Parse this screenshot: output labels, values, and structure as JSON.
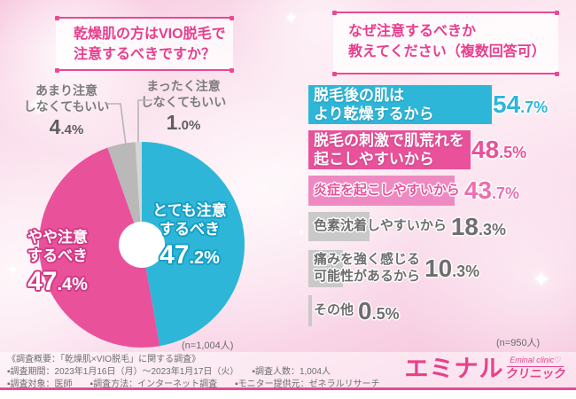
{
  "accent_color": "#e84a94",
  "chart_data": [
    {
      "type": "pie",
      "subtype": "donut",
      "title": "乾燥肌の方はVIO脱毛で\n注意するべきですか？",
      "n_label": "(n=1,004人)",
      "start_angle": "12-oclock",
      "direction": "clockwise",
      "slices": [
        {
          "label": "とても注意\nするべき",
          "value": 47.2,
          "color": "#2eb6d9",
          "label_placement": "inside"
        },
        {
          "label": "やや注意\nするべき",
          "value": 47.4,
          "color": "#e9519b",
          "label_placement": "inside"
        },
        {
          "label": "あまり注意\nしなくてもいい",
          "value": 4.4,
          "color": "#b9b9b9",
          "label_placement": "outside"
        },
        {
          "label": "まったく注意\nしなくてもいい",
          "value": 1.0,
          "color": "#d6d6d6",
          "label_placement": "outside"
        }
      ]
    },
    {
      "type": "bar",
      "orientation": "horizontal",
      "title": "なぜ注意するべきか\n教えてください（複数回答可）",
      "n_label": "(n=950人)",
      "xlim": [
        0,
        58
      ],
      "bars": [
        {
          "label": "脱毛後の肌は\nより乾燥するから",
          "value": 54.7,
          "color": "#2eb6d9",
          "value_color": "#2eb6d9",
          "label_color": "#ffffff"
        },
        {
          "label": "脱毛の刺激で肌荒れを\n起こしやすいから",
          "value": 48.5,
          "color": "#e9519b",
          "value_color": "#e9519b",
          "label_color": "#ffffff"
        },
        {
          "label": "炎症を起こしやすいから",
          "value": 43.7,
          "color": "#ee8ac1",
          "value_color": "#ec6fae",
          "label_color": "#e9519b"
        },
        {
          "label": "色素沈着しやすいから",
          "value": 18.3,
          "color": "#c9c9c9",
          "value_color": "#6e6e6e",
          "label_color": "#6e6e6e"
        },
        {
          "label": "痛みを強く感じる\n可能性があるから",
          "value": 10.3,
          "color": "#c9c9c9",
          "value_color": "#6e6e6e",
          "label_color": "#6e6e6e"
        },
        {
          "label": "その他",
          "value": 0.5,
          "color": "#c9c9c9",
          "value_color": "#6e6e6e",
          "label_color": "#6e6e6e"
        }
      ]
    }
  ],
  "footer": {
    "survey_lines": [
      "《調査概要：「乾燥肌×VIO脱毛」に関する調査》",
      "▪調査期間：2023年1月16日（月）～2023年1月17日（火）　　▪調査人数：1,004人",
      "▪調査対象：医師　　▪調査方法：インターネット調査　　▪モニター提供元：ゼネラルリサーチ"
    ],
    "logo": {
      "main": "エミナル",
      "sub": "クリニック",
      "script": "Eminal clinic",
      "heart": "♡",
      "color": "#e8418c"
    }
  }
}
